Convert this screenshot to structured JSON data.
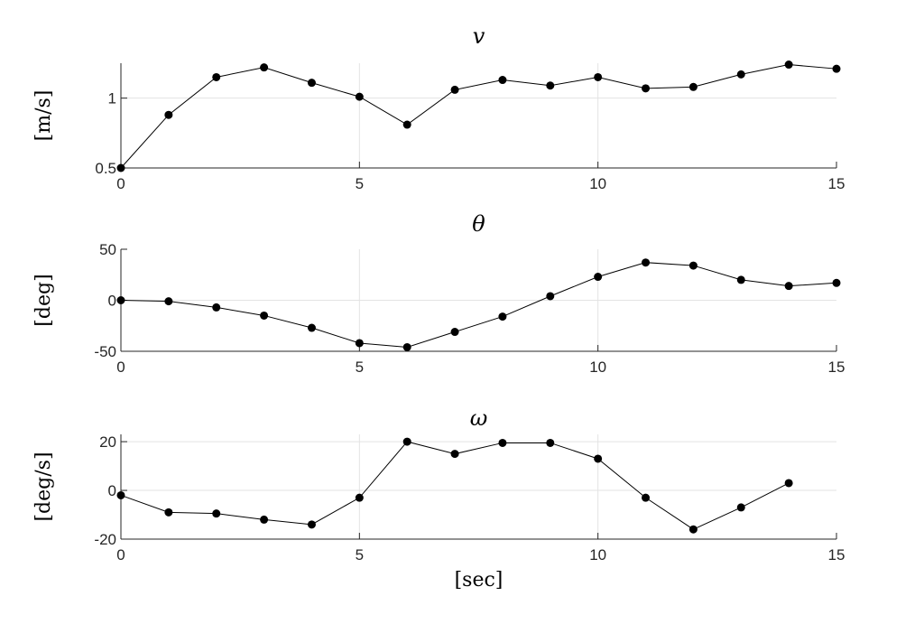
{
  "chart_data": [
    {
      "type": "line",
      "title": "v",
      "ylabel": "[m/s]",
      "xlabel": "",
      "xlim": [
        0,
        15
      ],
      "ylim": [
        0.5,
        1.25
      ],
      "xticks": [
        "0",
        "5",
        "10",
        "15"
      ],
      "yticks": [
        "0.5",
        "1"
      ],
      "grid": true,
      "x": [
        0,
        1,
        2,
        3,
        4,
        5,
        6,
        7,
        8,
        9,
        10,
        11,
        12,
        13,
        14,
        15
      ],
      "values": [
        0.5,
        0.88,
        1.15,
        1.22,
        1.11,
        1.01,
        0.81,
        1.06,
        1.13,
        1.09,
        1.15,
        1.07,
        1.08,
        1.17,
        1.24,
        1.21
      ]
    },
    {
      "type": "line",
      "title": "θ",
      "ylabel": "[deg]",
      "xlabel": "",
      "xlim": [
        0,
        15
      ],
      "ylim": [
        -50,
        50
      ],
      "xticks": [
        "0",
        "5",
        "10",
        "15"
      ],
      "yticks": [
        "-50",
        "0",
        "50"
      ],
      "grid": true,
      "x": [
        0,
        1,
        2,
        3,
        4,
        5,
        6,
        7,
        8,
        9,
        10,
        11,
        12,
        13,
        14,
        15
      ],
      "values": [
        0,
        -1,
        -7,
        -15,
        -27,
        -42,
        -46,
        -31,
        -16,
        4,
        23,
        37,
        34,
        20,
        14,
        17
      ]
    },
    {
      "type": "line",
      "title": "ω",
      "ylabel": "[deg/s]",
      "xlabel": "[sec]",
      "xlim": [
        0,
        15
      ],
      "ylim": [
        -20,
        23
      ],
      "xticks": [
        "0",
        "5",
        "10",
        "15"
      ],
      "yticks": [
        "-20",
        "0",
        "20"
      ],
      "grid": true,
      "x": [
        0,
        1,
        2,
        3,
        4,
        5,
        6,
        7,
        8,
        9,
        10,
        11,
        12,
        13,
        14
      ],
      "values": [
        -2,
        -9,
        -9.5,
        -12,
        -14,
        -3,
        20,
        15,
        19.5,
        19.5,
        13,
        -3,
        -16,
        -7,
        3
      ]
    }
  ]
}
